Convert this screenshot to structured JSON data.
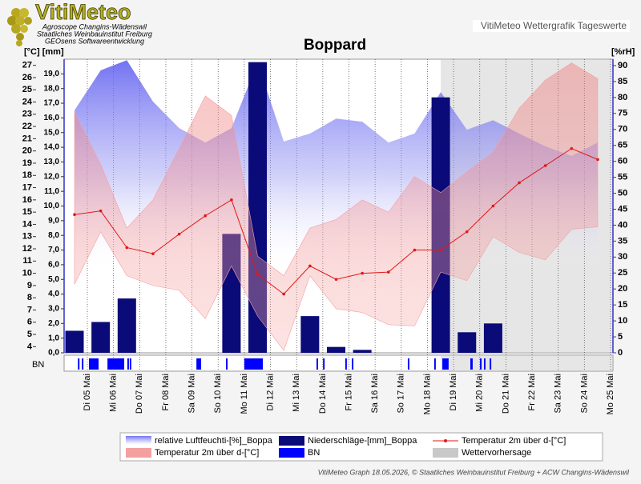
{
  "header": {
    "logo": "VitiMeteo",
    "lines": [
      "Agroscope Changins-Wädenswil",
      "Staatliches Weinbauinstitut Freiburg",
      "GEOsens Softwareentwicklung"
    ],
    "caption": "VitiMeteo Wettergrafik Tageswerte"
  },
  "chart_data": {
    "type": "combo",
    "title": "Boppard",
    "left_unit": "[°C] [mm]",
    "right_unit": "[%rH]",
    "categories": [
      "Di 05 Mai",
      "Mi 06 Mai",
      "Do 07 Mai",
      "Fr 08 Mai",
      "Sa 09 Mai",
      "So 10 Mai",
      "Mo 11 Mai",
      "Di 12 Mai",
      "Mi 13 Mai",
      "Do 14 Mai",
      "Fr 15 Mai",
      "Sa 16 Mai",
      "So 17 Mai",
      "Mo 18 Mai",
      "Di 19 Mai",
      "Mi 20 Mai",
      "Do 21 Mai",
      "Fr 22 Mai",
      "Sa 23 Mai",
      "So 24 Mai",
      "Mo 25 Mai"
    ],
    "ylim": [
      3.5,
      27.5
    ],
    "yticks": [
      4,
      5,
      6,
      7,
      8,
      9,
      10,
      11,
      12,
      13,
      14,
      15,
      16,
      17,
      18,
      19,
      20,
      21,
      22,
      23,
      24,
      25,
      26,
      27
    ],
    "mm_lim": [
      0,
      20
    ],
    "mm_ticks": [
      {
        "value": 0,
        "label": "0,0"
      },
      {
        "value": 1,
        "label": "1,0"
      },
      {
        "value": 2,
        "label": "2,0"
      },
      {
        "value": 3,
        "label": "3,0"
      },
      {
        "value": 4,
        "label": "4,0"
      },
      {
        "value": 5,
        "label": "5,0"
      },
      {
        "value": 6,
        "label": "6,0"
      },
      {
        "value": 7,
        "label": "7,0"
      },
      {
        "value": 8,
        "label": "8,0"
      },
      {
        "value": 9,
        "label": "9,0"
      },
      {
        "value": 10,
        "label": "10,0"
      },
      {
        "value": 11,
        "label": "11,0"
      },
      {
        "value": 12,
        "label": "12,0"
      },
      {
        "value": 13,
        "label": "13,0"
      },
      {
        "value": 14,
        "label": "14,0"
      },
      {
        "value": 15,
        "label": "15,0"
      },
      {
        "value": 16,
        "label": "16,0"
      },
      {
        "value": 17,
        "label": "17,0"
      },
      {
        "value": 18,
        "label": "18,0"
      },
      {
        "value": 19,
        "label": "19,0"
      }
    ],
    "y2lim": [
      0,
      92
    ],
    "y2ticks": [
      0,
      5,
      10,
      15,
      20,
      25,
      30,
      35,
      40,
      45,
      50,
      55,
      60,
      65,
      70,
      75,
      80,
      85,
      90
    ],
    "series": [
      {
        "name": "relative Luftfeuchti-[%]_Boppa",
        "kind": "area",
        "axis": "y2",
        "color": "#6a6af2",
        "values": [
          76,
          88.5,
          91.7,
          78.7,
          70.4,
          65.9,
          70.4,
          91,
          66.2,
          68.7,
          73.4,
          72.4,
          65.9,
          68.7,
          81.7,
          69.9,
          72.9,
          68.7,
          64.7,
          61.7,
          65.9
        ]
      },
      {
        "name": "Niederschläge-[mm]_Boppa",
        "kind": "bar",
        "axis": "mm",
        "color": "#0a0a78",
        "values": [
          1.5,
          2.1,
          3.7,
          0,
          0,
          0,
          8.1,
          19.8,
          0,
          2.5,
          0.4,
          0.2,
          0,
          0,
          17.4,
          1.4,
          2.0,
          0,
          0,
          0,
          0
        ]
      },
      {
        "name": "Temperatur 2m über d-[°C]",
        "kind": "line",
        "axis": "y",
        "color": "#e01818",
        "values": [
          14.8,
          15.1,
          12.1,
          11.6,
          13.2,
          14.7,
          16.0,
          9.9,
          8.3,
          10.6,
          9.5,
          10.0,
          10.1,
          11.9,
          11.9,
          13.4,
          15.5,
          17.4,
          18.8,
          20.2,
          19.3
        ]
      },
      {
        "name": "Temperatur 2m über d-[°C]",
        "kind": "band",
        "axis": "y",
        "color": "#f4a0a0",
        "upper": [
          23.2,
          18.9,
          13.7,
          16.0,
          20.2,
          24.5,
          22.9,
          11.4,
          9.8,
          13.7,
          14.4,
          16.0,
          15.0,
          17.9,
          16.6,
          18.3,
          19.9,
          23.5,
          25.8,
          27.2,
          25.9
        ],
        "lower": [
          9.1,
          13.4,
          9.8,
          9.0,
          8.6,
          6.3,
          10.6,
          6.5,
          3.7,
          9.8,
          7.1,
          6.8,
          5.8,
          5.7,
          10.1,
          9.4,
          13.0,
          11.7,
          11.1,
          13.6,
          13.8
        ]
      },
      {
        "name": "BN",
        "kind": "intervals",
        "color": "#0000ff",
        "periods": [
          [
            0.13,
            0.19
          ],
          [
            0.28,
            0.34
          ],
          [
            0.55,
            0.92
          ],
          [
            1.26,
            1.9
          ],
          [
            2.02,
            2.08
          ],
          [
            2.11,
            2.17
          ],
          [
            4.66,
            4.84
          ],
          [
            5.79,
            5.85
          ],
          [
            6.49,
            7.2
          ],
          [
            9.25,
            9.31
          ],
          [
            9.5,
            9.56
          ],
          [
            10.35,
            10.41
          ],
          [
            10.6,
            10.66
          ],
          [
            12.74,
            12.8
          ],
          [
            13.75,
            13.81
          ],
          [
            14.06,
            14.3
          ],
          [
            15.13,
            15.22
          ],
          [
            15.5,
            15.56
          ],
          [
            15.65,
            15.71
          ],
          [
            15.87,
            15.93
          ]
        ]
      },
      {
        "name": "Wettervorhersage",
        "kind": "region",
        "color": "#c8c8c8",
        "from": 14
      }
    ]
  },
  "footer": "VitiMeteo Graph 18.05.2026, © Staatliches Weinbauinstitut Freiburg + ACW Changins-Wädenswil"
}
